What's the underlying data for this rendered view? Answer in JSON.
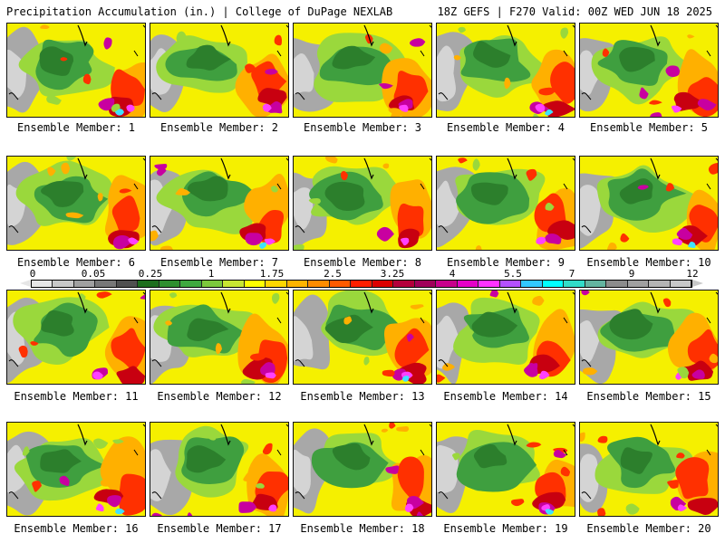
{
  "header": {
    "left": "Precipitation Accumulation (in.) | College of DuPage NEXLAB",
    "right": "18Z GEFS | F270 Valid: 00Z WED JUN 18 2025"
  },
  "members": [
    {
      "label": "Ensemble Member: 1"
    },
    {
      "label": "Ensemble Member: 2"
    },
    {
      "label": "Ensemble Member: 3"
    },
    {
      "label": "Ensemble Member: 4"
    },
    {
      "label": "Ensemble Member: 5"
    },
    {
      "label": "Ensemble Member: 6"
    },
    {
      "label": "Ensemble Member: 7"
    },
    {
      "label": "Ensemble Member: 8"
    },
    {
      "label": "Ensemble Member: 9"
    },
    {
      "label": "Ensemble Member: 10"
    },
    {
      "label": "Ensemble Member: 11"
    },
    {
      "label": "Ensemble Member: 12"
    },
    {
      "label": "Ensemble Member: 13"
    },
    {
      "label": "Ensemble Member: 14"
    },
    {
      "label": "Ensemble Member: 15"
    },
    {
      "label": "Ensemble Member: 16"
    },
    {
      "label": "Ensemble Member: 17"
    },
    {
      "label": "Ensemble Member: 18"
    },
    {
      "label": "Ensemble Member: 19"
    },
    {
      "label": "Ensemble Member: 20"
    }
  ],
  "colorbar": {
    "ticks": [
      "0",
      "0.05",
      "0.25",
      "1",
      "1.75",
      "2.5",
      "3.25",
      "4",
      "5.5",
      "7",
      "9",
      "12"
    ],
    "colors": [
      "#e6e6e6",
      "#c8c8c8",
      "#a0a0a0",
      "#787878",
      "#505050",
      "#1e6e1e",
      "#2f8f2f",
      "#3fa93f",
      "#7cc83c",
      "#c8e632",
      "#ffff00",
      "#ffd700",
      "#ffb400",
      "#ff8c00",
      "#ff5a00",
      "#ff1e00",
      "#dc0000",
      "#b4003c",
      "#a0005a",
      "#c8008c",
      "#e600c8",
      "#ff32ff",
      "#b450ff",
      "#32c8ff",
      "#00ffff",
      "#32dcc8",
      "#64b4a0",
      "#8c8c8c",
      "#a0a0a0",
      "#b4b4b4",
      "#c8c8c8"
    ]
  }
}
